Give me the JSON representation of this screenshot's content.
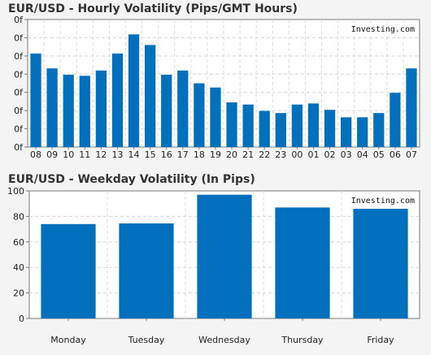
{
  "chart_data": [
    {
      "type": "bar",
      "title": "EUR/USD - Hourly Volatility (Pips/GMT Hours)",
      "watermark": "Investing.com",
      "categories": [
        "08",
        "09",
        "10",
        "11",
        "12",
        "13",
        "14",
        "15",
        "16",
        "17",
        "18",
        "19",
        "20",
        "21",
        "22",
        "23",
        "00",
        "01",
        "02",
        "03",
        "04",
        "05",
        "06",
        "07"
      ],
      "values": [
        4.4,
        3.7,
        3.4,
        3.35,
        3.6,
        4.4,
        5.3,
        4.8,
        3.4,
        3.6,
        3.0,
        2.8,
        2.1,
        2.0,
        1.7,
        1.6,
        2.0,
        2.05,
        1.75,
        1.4,
        1.4,
        1.6,
        2.55,
        3.7
      ],
      "y_tick_labels": [
        "0f",
        "0f",
        "0f",
        "0f",
        "0f",
        "0f",
        "0f",
        "0f"
      ],
      "ylim": [
        0,
        6
      ],
      "grid": true,
      "color": "#0270bd"
    },
    {
      "type": "bar",
      "title": "EUR/USD - Weekday Volatility (In Pips)",
      "watermark": "Investing.com",
      "categories": [
        "Monday",
        "Tuesday",
        "Wednesday",
        "Thursday",
        "Friday"
      ],
      "values": [
        74,
        74.5,
        97,
        87,
        86
      ],
      "y_tick_labels": [
        "0",
        "20",
        "40",
        "60",
        "80",
        "100"
      ],
      "ylim": [
        0,
        100
      ],
      "grid": true,
      "color": "#0270bd"
    }
  ]
}
